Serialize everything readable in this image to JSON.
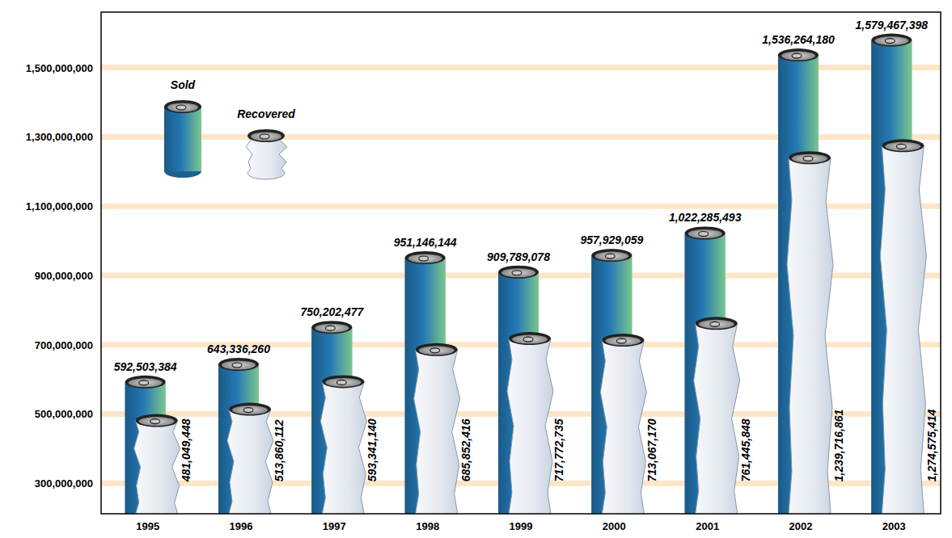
{
  "chart_data": {
    "type": "bar",
    "categories": [
      "1995",
      "1996",
      "1997",
      "1998",
      "1999",
      "2000",
      "2001",
      "2002",
      "2003"
    ],
    "series": [
      {
        "name": "Sold",
        "color": "#2378b4",
        "values": [
          592503384,
          643336260,
          750202477,
          951146144,
          909789078,
          957929059,
          1022285493,
          1536264180,
          1579467398
        ],
        "value_labels": [
          "592,503,384",
          "643,336,260",
          "750,202,477",
          "951,146,144",
          "909,789,078",
          "957,929,059",
          "1,022,285,493",
          "1,536,264,180",
          "1,579,467,398"
        ]
      },
      {
        "name": "Recovered",
        "color": "#c8d2e0",
        "values": [
          481049448,
          513860112,
          593341140,
          685852416,
          717772735,
          713067170,
          761445848,
          1239716861,
          1274575414
        ],
        "value_labels": [
          "481,049,448",
          "513,860,112",
          "593,341,140",
          "685,852,416",
          "717,772,735",
          "713,067,170",
          "761,445,848",
          "1,239,716,861",
          "1,274,575,414"
        ]
      }
    ],
    "ylim": [
      212000000,
      1660000000
    ],
    "yticks": [
      {
        "value": 300000000,
        "label": "300,000,000"
      },
      {
        "value": 500000000,
        "label": "500,000,000"
      },
      {
        "value": 700000000,
        "label": "700,000,000"
      },
      {
        "value": 900000000,
        "label": "900,000,000"
      },
      {
        "value": 1100000000,
        "label": "1,100,000,000"
      },
      {
        "value": 1300000000,
        "label": "1,300,000,000"
      },
      {
        "value": 1500000000,
        "label": "1,500,000,000"
      }
    ],
    "grid": true,
    "legend": "top-left",
    "data_labels": true
  }
}
